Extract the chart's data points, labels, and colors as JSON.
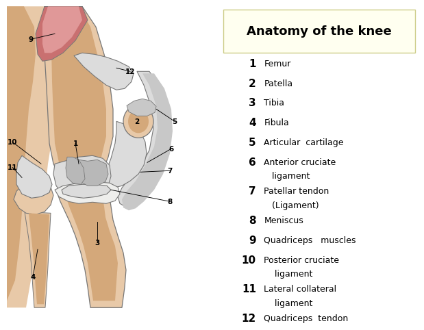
{
  "title": "Anatomy of the knee",
  "title_bg": "#fffff0",
  "bg_color": "#ffffff",
  "legend_items": [
    {
      "num": "1",
      "text": "Femur",
      "line2": ""
    },
    {
      "num": "2",
      "text": "Patella",
      "line2": ""
    },
    {
      "num": "3",
      "text": "Tibia",
      "line2": ""
    },
    {
      "num": "4",
      "text": "Fibula",
      "line2": ""
    },
    {
      "num": "5",
      "text": "Articular  cartilage",
      "line2": ""
    },
    {
      "num": "6",
      "text": "Anterior cruciate",
      "line2": "   ligament"
    },
    {
      "num": "7",
      "text": "Patellar tendon",
      "line2": "   (Ligament)"
    },
    {
      "num": "8",
      "text": "Meniscus",
      "line2": ""
    },
    {
      "num": "9",
      "text": "Quadriceps   muscles",
      "line2": ""
    },
    {
      "num": "10",
      "text": "Posterior cruciate",
      "line2": "    ligament"
    },
    {
      "num": "11",
      "text": "Lateral collateral",
      "line2": "    ligament"
    },
    {
      "num": "12",
      "text": "Quadriceps  tendon",
      "line2": ""
    }
  ],
  "colors": {
    "skin_light": "#e8c9a8",
    "skin_mid": "#d4a87a",
    "skin_dark": "#c49060",
    "muscle_red": "#c97070",
    "muscle_light": "#e09898",
    "white_tissue": "#dcdcdc",
    "cartilage": "#c8c8c8",
    "ligament": "#b8b8b8",
    "bone_white": "#eeeeec",
    "outline": "#777777",
    "outline_dark": "#444444"
  }
}
